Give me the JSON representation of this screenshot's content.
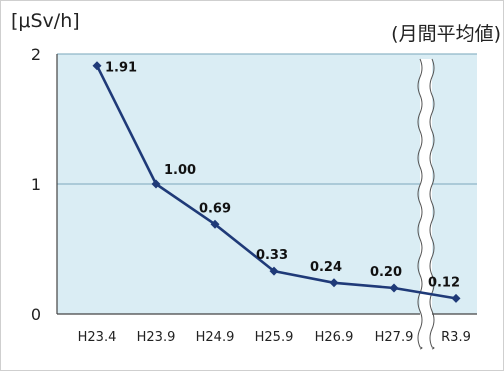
{
  "chart_data": {
    "type": "line",
    "unit_label": "[μSv/h]",
    "note": "(月間平均値)",
    "title": "",
    "xlabel": "",
    "ylabel": "",
    "ylim": [
      0,
      2
    ],
    "y_ticks": [
      "0",
      "1",
      "2"
    ],
    "grid": true,
    "x_axis_break": "between H27.9 and R3.9",
    "categories": [
      "H23.4",
      "H23.9",
      "H24.9",
      "H25.9",
      "H26.9",
      "H27.9",
      "R3.9"
    ],
    "values": [
      1.91,
      1.0,
      0.69,
      0.33,
      0.24,
      0.2,
      0.12
    ],
    "data_labels": [
      "1.91",
      "1.00",
      "0.69",
      "0.33",
      "0.24",
      "0.20",
      "0.12"
    ],
    "colors": {
      "plot_background": "#daedf4",
      "line": "#1f3a78",
      "gridline": "#8fb6c8",
      "axis": "#444444"
    }
  }
}
